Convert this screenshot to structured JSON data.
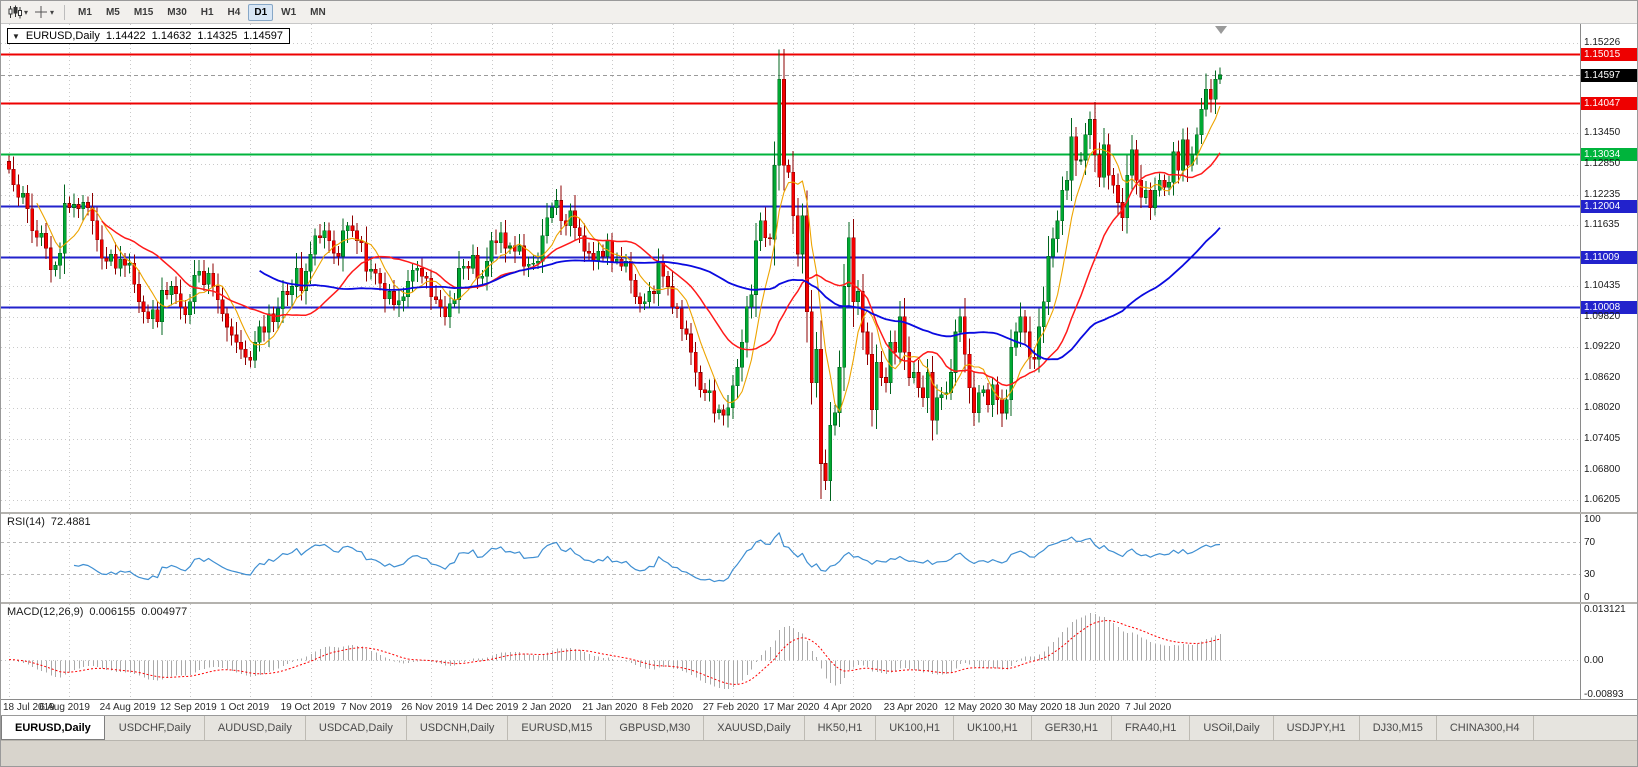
{
  "toolbar": {
    "timeframes": [
      "M1",
      "M5",
      "M15",
      "M30",
      "H1",
      "H4",
      "D1",
      "W1",
      "MN"
    ],
    "active_timeframe": "D1",
    "window_menu_glyph": "▼"
  },
  "colors": {
    "up": "#00a832",
    "up_border": "#00641e",
    "down": "#f40000",
    "down_border": "#8e0000",
    "ma_fast": "#eda400",
    "ma_medium": "#ff1a1a",
    "ma_slow": "#0a0ae0",
    "grid": "#c9c9c9",
    "hist": "#aaaaaa",
    "current_price_box": "#000000"
  },
  "chart_data": {
    "type": "candlestick",
    "title": "EURUSD,Daily",
    "ohlc_display": {
      "open": "1.14422",
      "high": "1.14632",
      "low": "1.14325",
      "close": "1.14597"
    },
    "current_price": 1.14597,
    "ylim": [
      1.061,
      1.1549
    ],
    "x_label_step": 13,
    "x_labels": [
      "18 Jul 2019",
      "6 Aug 2019",
      "24 Aug 2019",
      "12 Sep 2019",
      "1 Oct 2019",
      "19 Oct 2019",
      "7 Nov 2019",
      "26 Nov 2019",
      "14 Dec 2019",
      "2 Jan 2020",
      "21 Jan 2020",
      "8 Feb 2020",
      "27 Feb 2020",
      "17 Mar 2020",
      "4 Apr 2020",
      "23 Apr 2020",
      "12 May 2020",
      "30 May 2020",
      "18 Jun 2020",
      "7 Jul 2020"
    ],
    "y_ticks": [
      {
        "label": "1.15226",
        "kind": "tick"
      },
      {
        "label": "1.15015",
        "kind": "hline",
        "color": "#ee0000"
      },
      {
        "label": "1.14597",
        "kind": "price",
        "color": "#000000"
      },
      {
        "label": "1.14047",
        "kind": "hline",
        "color": "#ee0000"
      },
      {
        "label": "1.13450",
        "kind": "tick"
      },
      {
        "label": "1.13034",
        "kind": "hline",
        "color": "#00b43c"
      },
      {
        "label": "1.12850",
        "kind": "tick"
      },
      {
        "label": "1.12235",
        "kind": "tick"
      },
      {
        "label": "1.12004",
        "kind": "hline",
        "color": "#2222cc"
      },
      {
        "label": "1.11635",
        "kind": "tick"
      },
      {
        "label": "1.11009",
        "kind": "hline",
        "color": "#2222cc"
      },
      {
        "label": "1.10435",
        "kind": "tick"
      },
      {
        "label": "1.10008",
        "kind": "hline",
        "color": "#2222cc"
      },
      {
        "label": "1.09820",
        "kind": "tick"
      },
      {
        "label": "1.09220",
        "kind": "tick"
      },
      {
        "label": "1.08620",
        "kind": "tick"
      },
      {
        "label": "1.08020",
        "kind": "tick"
      },
      {
        "label": "1.07405",
        "kind": "tick"
      },
      {
        "label": "1.06800",
        "kind": "tick"
      },
      {
        "label": "1.06205",
        "kind": "tick"
      }
    ],
    "moving_averages": [
      {
        "name": "fast",
        "period": 7,
        "color": "#eda400",
        "width": 1.1
      },
      {
        "name": "medium",
        "period": 21,
        "color": "#ff1a1a",
        "width": 1.5
      },
      {
        "name": "slow",
        "period": 55,
        "color": "#0a0ae0",
        "width": 1.8
      }
    ],
    "closes": [
      1.1274,
      1.1243,
      1.1218,
      1.1226,
      1.1196,
      1.1152,
      1.1139,
      1.1147,
      1.1118,
      1.1075,
      1.1084,
      1.1108,
      1.1206,
      1.1198,
      1.1204,
      1.1196,
      1.1208,
      1.1198,
      1.1172,
      1.1134,
      1.1098,
      1.1092,
      1.1106,
      1.1078,
      1.1096,
      1.1084,
      1.1088,
      1.1046,
      1.1012,
      1.0992,
      1.0978,
      1.0996,
      1.0972,
      1.1034,
      1.1026,
      1.1042,
      1.1028,
      1.1002,
      1.0986,
      1.1012,
      1.1064,
      1.1072,
      1.1046,
      1.1068,
      1.1042,
      1.1016,
      1.0988,
      1.0962,
      1.0946,
      1.0932,
      1.0918,
      1.0902,
      1.0896,
      1.0932,
      1.0962,
      1.0952,
      1.0988,
      1.0972,
      1.0998,
      1.1032,
      1.1026,
      1.1042,
      1.1078,
      1.1034,
      1.1072,
      1.1106,
      1.1142,
      1.1138,
      1.1152,
      1.1132,
      1.1108,
      1.1102,
      1.1152,
      1.1162,
      1.1152,
      1.1132,
      1.1128,
      1.1072,
      1.1076,
      1.1068,
      1.1048,
      1.1018,
      1.1032,
      1.1006,
      1.1014,
      1.1022,
      1.1052,
      1.1074,
      1.1078,
      1.1062,
      1.1058,
      1.1022,
      1.1016,
      1.1002,
      1.0982,
      1.1008,
      1.1016,
      1.1078,
      1.1082,
      1.1078,
      1.1104,
      1.1058,
      1.1062,
      1.1092,
      1.1132,
      1.1128,
      1.1148,
      1.1118,
      1.1122,
      1.1112,
      1.1122,
      1.1082,
      1.1086,
      1.1088,
      1.1092,
      1.1142,
      1.1178,
      1.1198,
      1.1212,
      1.1172,
      1.1162,
      1.1192,
      1.1158,
      1.1142,
      1.1112,
      1.1108,
      1.1092,
      1.1112,
      1.1102,
      1.1132,
      1.1092,
      1.1096,
      1.1082,
      1.1092,
      1.1054,
      1.1022,
      1.1008,
      1.1012,
      1.1032,
      1.1028,
      1.1092,
      1.1062,
      1.1042,
      1.1002,
      1.0998,
      1.0958,
      1.0948,
      1.0912,
      1.0872,
      1.0838,
      1.0832,
      1.0836,
      1.0792,
      1.0798,
      1.0788,
      1.0802,
      1.0846,
      1.0882,
      1.0932,
      1.1002,
      1.1026,
      1.1132,
      1.1172,
      1.1138,
      1.1136,
      1.1282,
      1.1452,
      1.1282,
      1.1268,
      1.1182,
      1.1106,
      1.1182,
      1.0992,
      1.0852,
      1.0918,
      1.0692,
      1.0658,
      1.0768,
      1.0792,
      1.0882,
      1.1042,
      1.1138,
      1.1012,
      1.1032,
      1.0952,
      1.0908,
      1.0798,
      1.0892,
      1.0862,
      1.0852,
      1.0932,
      1.0912,
      1.0982,
      1.0912,
      1.0862,
      1.0872,
      1.0842,
      1.0822,
      1.0872,
      1.0778,
      1.0822,
      1.0828,
      1.0832,
      1.0872,
      1.0952,
      1.0982,
      1.0908,
      1.0842,
      1.0792,
      1.0832,
      1.0838,
      1.0808,
      1.0848,
      1.0818,
      1.0792,
      1.0818,
      1.0922,
      1.0952,
      1.0982,
      1.0952,
      1.0902,
      1.0898,
      1.0962,
      1.1012,
      1.1102,
      1.1136,
      1.1172,
      1.1232,
      1.1252,
      1.1338,
      1.1292,
      1.1292,
      1.1342,
      1.1372,
      1.1302,
      1.1258,
      1.1322,
      1.1262,
      1.1242,
      1.1208,
      1.1178,
      1.1262,
      1.1312,
      1.1252,
      1.1218,
      1.1232,
      1.1198,
      1.1232,
      1.1252,
      1.1238,
      1.1248,
      1.1308,
      1.1272,
      1.1332,
      1.1282,
      1.1302,
      1.1342,
      1.1392,
      1.1432,
      1.1412,
      1.1452,
      1.146
    ],
    "rsi": {
      "label": "RSI(14)",
      "value": "72.4881",
      "period": 14,
      "axis": [
        "100",
        "70",
        "30",
        "0"
      ],
      "levels": [
        70,
        30
      ],
      "color": "#3f8fd2"
    },
    "macd": {
      "label": "MACD(12,26,9)",
      "value_main": "0.006155",
      "value_signal": "0.004977",
      "fast": 12,
      "slow": 26,
      "signal": 9,
      "axis": [
        "0.013121",
        "0.00",
        "-0.00893"
      ],
      "range": [
        -0.00893,
        0.013121
      ]
    }
  },
  "tabs": {
    "active_index": 0,
    "items": [
      "EURUSD,Daily",
      "USDCHF,Daily",
      "AUDUSD,Daily",
      "USDCAD,Daily",
      "USDCNH,Daily",
      "EURUSD,M15",
      "GBPUSD,M30",
      "XAUUSD,Daily",
      "HK50,H1",
      "UK100,H1",
      "UK100,H1",
      "GER30,H1",
      "FRA40,H1",
      "USOil,Daily",
      "USDJPY,H1",
      "DJ30,M15",
      "CHINA300,H4"
    ]
  }
}
